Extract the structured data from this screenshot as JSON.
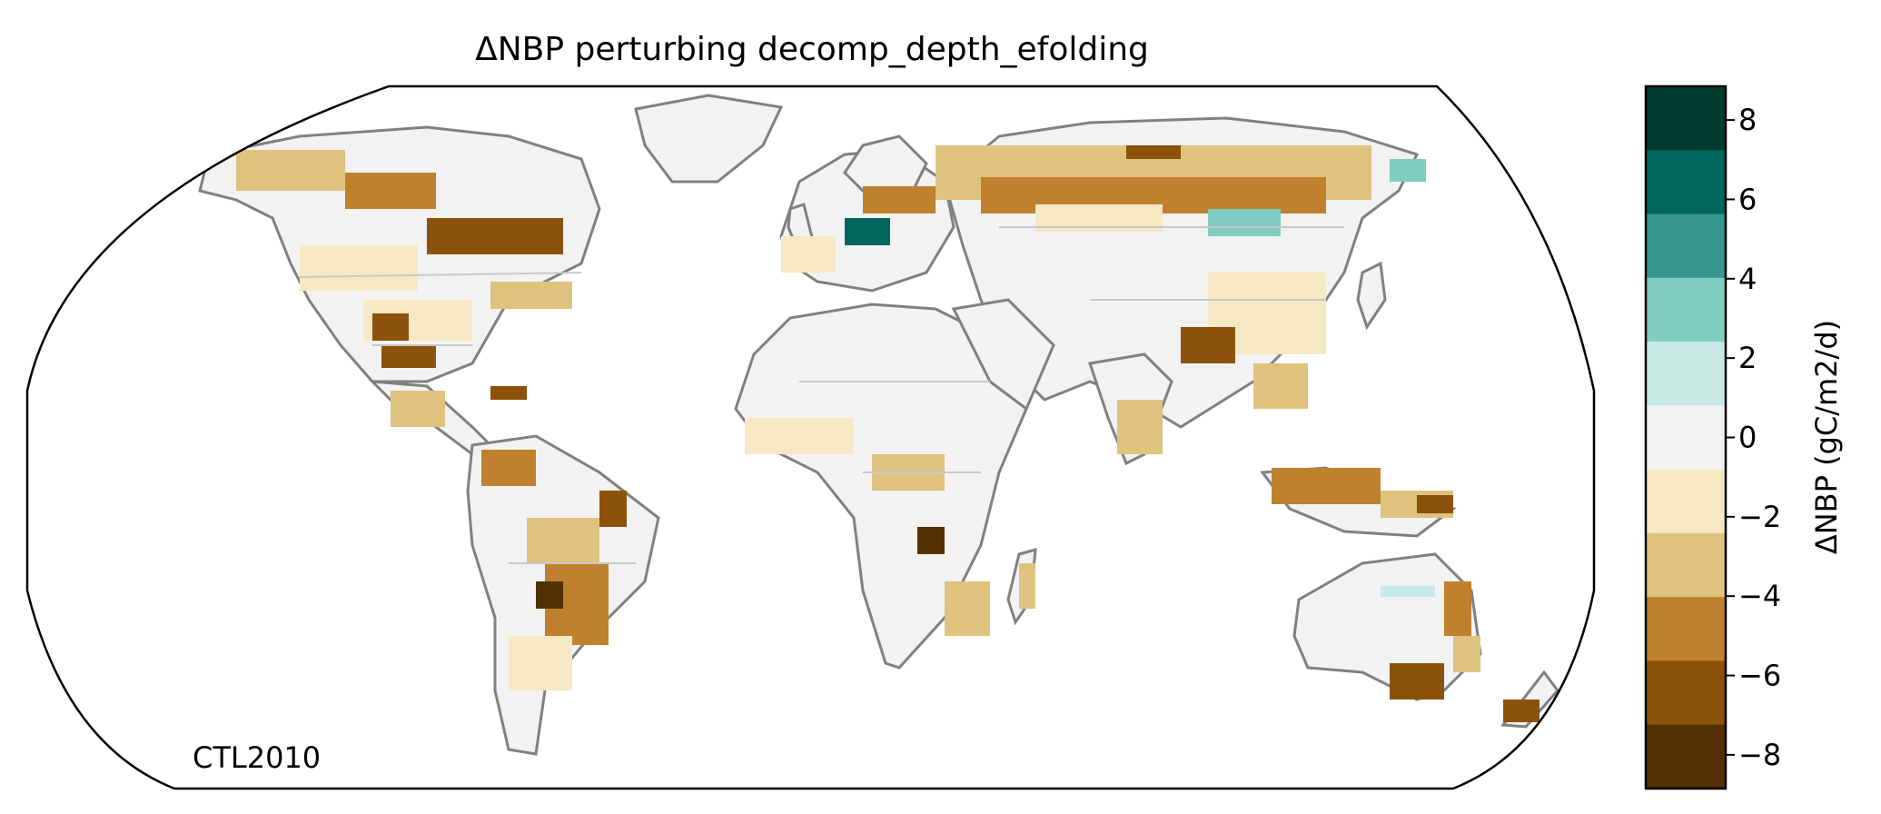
{
  "title": "ΔNBP perturbing decomp_depth_efolding",
  "panel_label": "CTL2010",
  "colorbar": {
    "label": "ΔNBP (gC/m2/d)",
    "ticks": [
      "8",
      "6",
      "4",
      "2",
      "0",
      "−2",
      "−4",
      "−6",
      "−8"
    ],
    "bins": [
      {
        "from": 7,
        "to": 9,
        "color": "#003c30"
      },
      {
        "from": 5,
        "to": 7,
        "color": "#01665e"
      },
      {
        "from": 3,
        "to": 5,
        "color": "#35978f"
      },
      {
        "from": 1,
        "to": 3,
        "color": "#80cdc1"
      },
      {
        "from": 1,
        "to": 1,
        "color": "#c7eae5"
      },
      {
        "from": -1,
        "to": 1,
        "color": "#f2f2f2"
      },
      {
        "from": -3,
        "to": -1,
        "color": "#f6e8c3"
      },
      {
        "from": -5,
        "to": -3,
        "color": "#dfc27d"
      },
      {
        "from": -7,
        "to": -5,
        "color": "#bf812d"
      },
      {
        "from": -9,
        "to": -7,
        "color": "#8c510a"
      }
    ],
    "extra_bin_color": "#543005"
  },
  "map": {
    "projection": "Robinson",
    "coastline_color": "#808080",
    "border_color": "#c8c8c8",
    "land_color": "#f2f2f2",
    "ocean_color": "#ffffff"
  }
}
